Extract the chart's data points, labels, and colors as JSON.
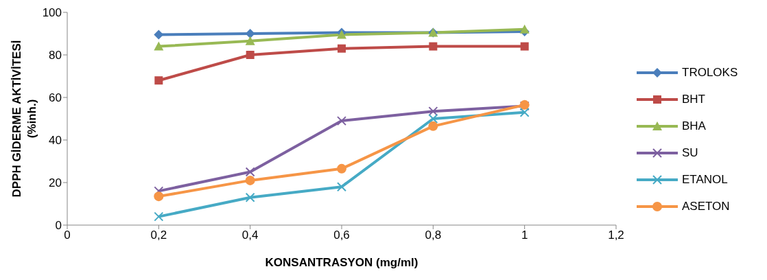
{
  "chart_data": {
    "type": "line",
    "xlabel": "KONSANTRASYON (mg/ml)",
    "ylabel": "DPPH GİDERME AKTİVİTESİ (%inh.)",
    "x": [
      0.2,
      0.4,
      0.6,
      0.8,
      1
    ],
    "series": [
      {
        "name": "TROLOKS",
        "color": "#4a7ebb",
        "marker": "diamond",
        "values": [
          89.5,
          90,
          90.5,
          90.5,
          91
        ]
      },
      {
        "name": "BHT",
        "color": "#be4b48",
        "marker": "square",
        "values": [
          68,
          80,
          83,
          84,
          84
        ]
      },
      {
        "name": "BHA",
        "color": "#98b954",
        "marker": "triangle",
        "values": [
          84,
          86.5,
          89.5,
          90.5,
          92
        ]
      },
      {
        "name": "SU",
        "color": "#7d60a0",
        "marker": "cross",
        "values": [
          16,
          25,
          49,
          53.5,
          56
        ]
      },
      {
        "name": "ETANOL",
        "color": "#46aac5",
        "marker": "cross",
        "values": [
          4,
          13,
          18,
          50,
          53
        ]
      },
      {
        "name": "ASETON",
        "color": "#f69546",
        "marker": "circle",
        "values": [
          13.5,
          21,
          26.5,
          46.5,
          56.5
        ]
      }
    ],
    "xlim": [
      0,
      1.2
    ],
    "xticks": [
      0,
      {
        "value": 0.2,
        "label": "0,2"
      },
      {
        "value": 0.4,
        "label": "0,4"
      },
      {
        "value": 0.6,
        "label": "0,6"
      },
      {
        "value": 0.8,
        "label": "0,8"
      },
      1,
      {
        "value": 1.2,
        "label": "1,2"
      }
    ],
    "ylim": [
      0,
      100
    ],
    "yticks": [
      0,
      20,
      40,
      60,
      80,
      100
    ],
    "grid": false,
    "legend": "right",
    "line_style": "solid"
  }
}
